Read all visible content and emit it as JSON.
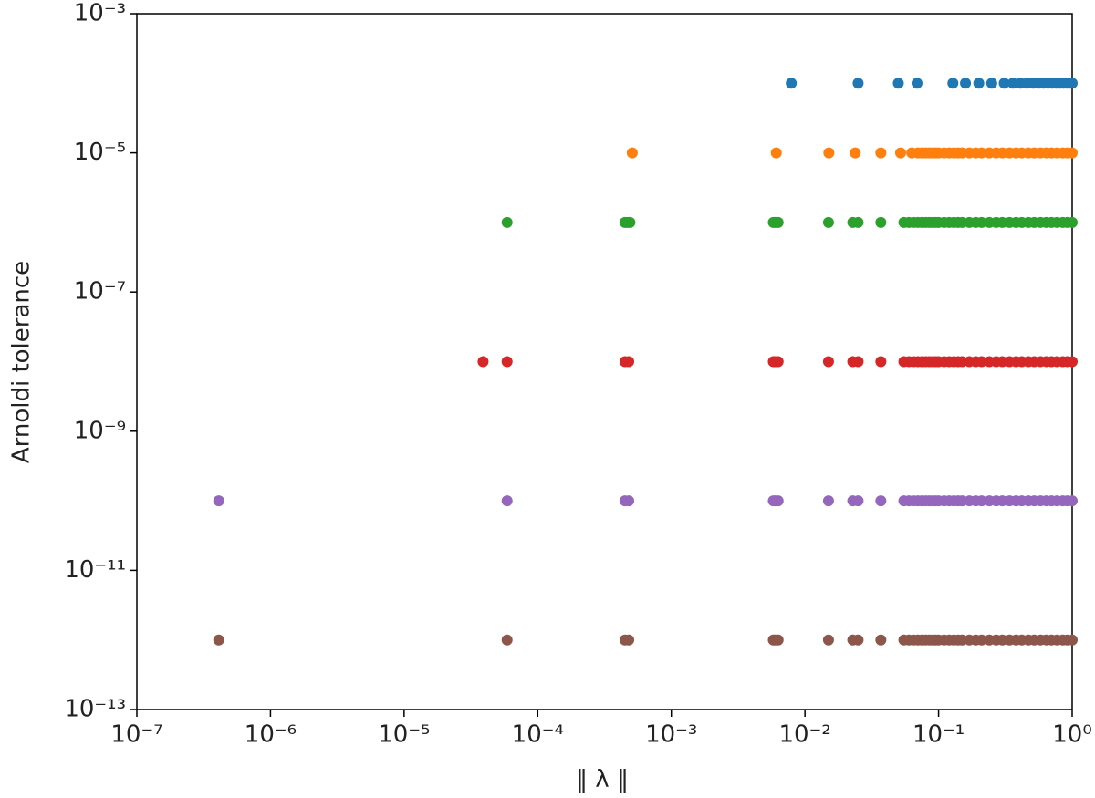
{
  "chart_data": {
    "type": "scatter",
    "x_label": "‖ λ ‖",
    "y_label": "Arnoldi tolerance",
    "xscale": "log",
    "yscale": "log",
    "xlim": [
      1e-07,
      1
    ],
    "ylim": [
      1e-13,
      0.001
    ],
    "xticks": [
      {
        "value": 1e-07,
        "label": "10⁻⁷"
      },
      {
        "value": 1e-06,
        "label": "10⁻⁶"
      },
      {
        "value": 1e-05,
        "label": "10⁻⁵"
      },
      {
        "value": 0.0001,
        "label": "10⁻⁴"
      },
      {
        "value": 0.001,
        "label": "10⁻³"
      },
      {
        "value": 0.01,
        "label": "10⁻²"
      },
      {
        "value": 0.1,
        "label": "10⁻¹"
      },
      {
        "value": 1,
        "label": "10⁰"
      }
    ],
    "yticks": [
      {
        "value": 1e-13,
        "label": "10⁻¹³"
      },
      {
        "value": 1e-11,
        "label": "10⁻¹¹"
      },
      {
        "value": 1e-09,
        "label": "10⁻⁹"
      },
      {
        "value": 1e-07,
        "label": "10⁻⁷"
      },
      {
        "value": 1e-05,
        "label": "10⁻⁵"
      },
      {
        "value": 0.001,
        "label": "10⁻³"
      }
    ],
    "series": [
      {
        "color": "#1f77b4",
        "x": [
          0.0079,
          0.025,
          0.05,
          0.069,
          0.128,
          0.159,
          0.2,
          0.25,
          0.31,
          0.36,
          0.41,
          0.46,
          0.51,
          0.56,
          0.61,
          0.66,
          0.71,
          0.76,
          0.81,
          0.86,
          0.91,
          0.96,
          1.0
        ],
        "values": [
          0.0001,
          0.0001,
          0.0001,
          0.0001,
          0.0001,
          0.0001,
          0.0001,
          0.0001,
          0.0001,
          0.0001,
          0.0001,
          0.0001,
          0.0001,
          0.0001,
          0.0001,
          0.0001,
          0.0001,
          0.0001,
          0.0001,
          0.0001,
          0.0001,
          0.0001,
          0.0001
        ]
      },
      {
        "color": "#ff7f0e",
        "x": [
          0.00051,
          0.0061,
          0.0151,
          0.0238,
          0.037,
          0.052,
          0.063,
          0.07,
          0.075,
          0.08,
          0.085,
          0.09,
          0.095,
          0.1,
          0.11,
          0.12,
          0.13,
          0.14,
          0.15,
          0.17,
          0.19,
          0.21,
          0.24,
          0.27,
          0.3,
          0.34,
          0.38,
          0.42,
          0.47,
          0.52,
          0.58,
          0.64,
          0.7,
          0.77,
          0.85,
          0.92,
          1.0
        ],
        "values": [
          1e-05,
          1e-05,
          1e-05,
          1e-05,
          1e-05,
          1e-05,
          1e-05,
          1e-05,
          1e-05,
          1e-05,
          1e-05,
          1e-05,
          1e-05,
          1e-05,
          1e-05,
          1e-05,
          1e-05,
          1e-05,
          1e-05,
          1e-05,
          1e-05,
          1e-05,
          1e-05,
          1e-05,
          1e-05,
          1e-05,
          1e-05,
          1e-05,
          1e-05,
          1e-05,
          1e-05,
          1e-05,
          1e-05,
          1e-05,
          1e-05,
          1e-05,
          1e-05
        ]
      },
      {
        "color": "#2ca02c",
        "x": [
          5.9e-05,
          0.00045,
          0.00047,
          0.00049,
          0.0058,
          0.006,
          0.0063,
          0.015,
          0.0228,
          0.025,
          0.037,
          0.055,
          0.06,
          0.065,
          0.07,
          0.075,
          0.08,
          0.085,
          0.09,
          0.095,
          0.1,
          0.11,
          0.12,
          0.13,
          0.14,
          0.15,
          0.17,
          0.19,
          0.21,
          0.24,
          0.27,
          0.3,
          0.34,
          0.38,
          0.42,
          0.47,
          0.52,
          0.58,
          0.64,
          0.7,
          0.77,
          0.85,
          0.92,
          1.0
        ],
        "values": [
          1e-06,
          1e-06,
          1e-06,
          1e-06,
          1e-06,
          1e-06,
          1e-06,
          1e-06,
          1e-06,
          1e-06,
          1e-06,
          1e-06,
          1e-06,
          1e-06,
          1e-06,
          1e-06,
          1e-06,
          1e-06,
          1e-06,
          1e-06,
          1e-06,
          1e-06,
          1e-06,
          1e-06,
          1e-06,
          1e-06,
          1e-06,
          1e-06,
          1e-06,
          1e-06,
          1e-06,
          1e-06,
          1e-06,
          1e-06,
          1e-06,
          1e-06,
          1e-06,
          1e-06,
          1e-06,
          1e-06,
          1e-06,
          1e-06,
          1e-06,
          1e-06
        ]
      },
      {
        "color": "#d62728",
        "x": [
          3.9e-05,
          5.9e-05,
          0.00045,
          0.00048,
          0.0058,
          0.006,
          0.0063,
          0.015,
          0.0228,
          0.025,
          0.037,
          0.055,
          0.06,
          0.065,
          0.07,
          0.075,
          0.08,
          0.085,
          0.09,
          0.095,
          0.1,
          0.11,
          0.12,
          0.13,
          0.14,
          0.15,
          0.17,
          0.19,
          0.21,
          0.24,
          0.27,
          0.3,
          0.34,
          0.38,
          0.42,
          0.47,
          0.52,
          0.58,
          0.64,
          0.7,
          0.77,
          0.85,
          0.92,
          1.0
        ],
        "values": [
          1e-08,
          1e-08,
          1e-08,
          1e-08,
          1e-08,
          1e-08,
          1e-08,
          1e-08,
          1e-08,
          1e-08,
          1e-08,
          1e-08,
          1e-08,
          1e-08,
          1e-08,
          1e-08,
          1e-08,
          1e-08,
          1e-08,
          1e-08,
          1e-08,
          1e-08,
          1e-08,
          1e-08,
          1e-08,
          1e-08,
          1e-08,
          1e-08,
          1e-08,
          1e-08,
          1e-08,
          1e-08,
          1e-08,
          1e-08,
          1e-08,
          1e-08,
          1e-08,
          1e-08,
          1e-08,
          1e-08,
          1e-08,
          1e-08,
          1e-08,
          1e-08
        ]
      },
      {
        "color": "#9467bd",
        "x": [
          4.1e-07,
          5.9e-05,
          0.00045,
          0.00048,
          0.0058,
          0.006,
          0.0063,
          0.015,
          0.0228,
          0.025,
          0.037,
          0.055,
          0.06,
          0.065,
          0.07,
          0.075,
          0.08,
          0.085,
          0.09,
          0.095,
          0.1,
          0.11,
          0.12,
          0.13,
          0.14,
          0.15,
          0.17,
          0.19,
          0.21,
          0.24,
          0.27,
          0.3,
          0.34,
          0.38,
          0.42,
          0.47,
          0.52,
          0.58,
          0.64,
          0.7,
          0.77,
          0.85,
          0.92,
          1.0
        ],
        "values": [
          1e-10,
          1e-10,
          1e-10,
          1e-10,
          1e-10,
          1e-10,
          1e-10,
          1e-10,
          1e-10,
          1e-10,
          1e-10,
          1e-10,
          1e-10,
          1e-10,
          1e-10,
          1e-10,
          1e-10,
          1e-10,
          1e-10,
          1e-10,
          1e-10,
          1e-10,
          1e-10,
          1e-10,
          1e-10,
          1e-10,
          1e-10,
          1e-10,
          1e-10,
          1e-10,
          1e-10,
          1e-10,
          1e-10,
          1e-10,
          1e-10,
          1e-10,
          1e-10,
          1e-10,
          1e-10,
          1e-10,
          1e-10,
          1e-10,
          1e-10,
          1e-10
        ]
      },
      {
        "color": "#8c564b",
        "x": [
          4.1e-07,
          5.9e-05,
          0.00045,
          0.00048,
          0.0058,
          0.006,
          0.0063,
          0.015,
          0.0228,
          0.025,
          0.037,
          0.055,
          0.06,
          0.065,
          0.07,
          0.075,
          0.08,
          0.085,
          0.09,
          0.095,
          0.1,
          0.11,
          0.12,
          0.13,
          0.14,
          0.15,
          0.17,
          0.19,
          0.21,
          0.24,
          0.27,
          0.3,
          0.34,
          0.38,
          0.42,
          0.47,
          0.52,
          0.58,
          0.64,
          0.7,
          0.77,
          0.85,
          0.92,
          1.0
        ],
        "values": [
          1e-12,
          1e-12,
          1e-12,
          1e-12,
          1e-12,
          1e-12,
          1e-12,
          1e-12,
          1e-12,
          1e-12,
          1e-12,
          1e-12,
          1e-12,
          1e-12,
          1e-12,
          1e-12,
          1e-12,
          1e-12,
          1e-12,
          1e-12,
          1e-12,
          1e-12,
          1e-12,
          1e-12,
          1e-12,
          1e-12,
          1e-12,
          1e-12,
          1e-12,
          1e-12,
          1e-12,
          1e-12,
          1e-12,
          1e-12,
          1e-12,
          1e-12,
          1e-12,
          1e-12,
          1e-12,
          1e-12,
          1e-12,
          1e-12,
          1e-12,
          1e-12
        ]
      }
    ]
  }
}
